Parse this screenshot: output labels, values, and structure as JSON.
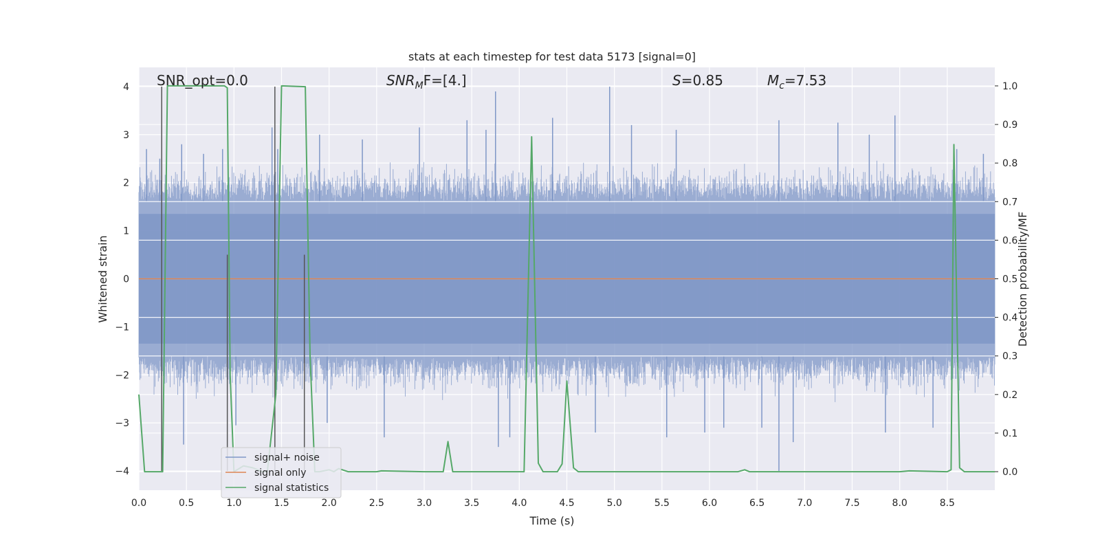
{
  "chart_data": {
    "type": "line",
    "title": "stats at each timestep for test data 5173 [signal=0]",
    "xlabel": "Time (s)",
    "ylabel": "Whitened strain",
    "ylabel_right": "Detection probability/MF",
    "xlim": [
      0.0,
      9.0
    ],
    "ylim": [
      -4.4,
      4.4
    ],
    "ylim_right": [
      -0.048,
      1.048
    ],
    "xticks": [
      "0.0",
      "0.5",
      "1.0",
      "1.5",
      "2.0",
      "2.5",
      "3.0",
      "3.5",
      "4.0",
      "4.5",
      "5.0",
      "5.5",
      "6.0",
      "6.5",
      "7.0",
      "7.5",
      "8.0",
      "8.5"
    ],
    "yticks": [
      "4",
      "3",
      "2",
      "1",
      "0",
      "−1",
      "−2",
      "−3",
      "−4"
    ],
    "yticks_right": [
      "1.0",
      "0.9",
      "0.8",
      "0.7",
      "0.6",
      "0.5",
      "0.4",
      "0.3",
      "0.2",
      "0.1",
      "0.0"
    ],
    "annotations": {
      "snr_opt": "SNR_opt=0.0",
      "snr_mf": "SNR",
      "snr_mf_sub": "M",
      "snr_mf_tail": "F=[4.]",
      "s_sym": "S",
      "s_val": "=0.85",
      "mc_sym": "M",
      "mc_sub": "c",
      "mc_val": "=7.53"
    },
    "legend": {
      "placement": "lower-left",
      "entries": [
        "signal+ noise",
        "signal only",
        "signal statistics"
      ]
    },
    "colors": {
      "noise": "#7f97c7",
      "signal": "#dd8452",
      "stats": "#55a868",
      "markers": "#555555",
      "background": "#eaeaf2",
      "grid": "#ffffff"
    },
    "series": [
      {
        "name": "signal+ noise",
        "note": "dense whitened noise, envelope ~±1.6 with spikes up to ~3.9 and down to ~−4.0",
        "spikes": [
          {
            "t": 0.08,
            "v": 2.7
          },
          {
            "t": 0.22,
            "v": 2.5
          },
          {
            "t": 0.45,
            "v": 2.8
          },
          {
            "t": 0.47,
            "v": -3.45
          },
          {
            "t": 0.68,
            "v": 2.6
          },
          {
            "t": 0.88,
            "v": 2.7
          },
          {
            "t": 1.02,
            "v": -3.05
          },
          {
            "t": 1.4,
            "v": 3.15
          },
          {
            "t": 1.46,
            "v": 2.7
          },
          {
            "t": 1.9,
            "v": 3.0
          },
          {
            "t": 1.98,
            "v": -3.0
          },
          {
            "t": 2.35,
            "v": 2.9
          },
          {
            "t": 2.58,
            "v": -3.3
          },
          {
            "t": 2.95,
            "v": 3.15
          },
          {
            "t": 3.45,
            "v": 3.3
          },
          {
            "t": 3.65,
            "v": 3.1
          },
          {
            "t": 3.75,
            "v": 3.9
          },
          {
            "t": 3.78,
            "v": -3.5
          },
          {
            "t": 3.9,
            "v": -3.3
          },
          {
            "t": 4.35,
            "v": 3.35
          },
          {
            "t": 4.8,
            "v": -3.2
          },
          {
            "t": 4.95,
            "v": 4.0
          },
          {
            "t": 5.18,
            "v": 3.2
          },
          {
            "t": 5.55,
            "v": -3.3
          },
          {
            "t": 5.65,
            "v": 3.1
          },
          {
            "t": 5.95,
            "v": -3.2
          },
          {
            "t": 6.15,
            "v": -3.1
          },
          {
            "t": 6.55,
            "v": -3.1
          },
          {
            "t": 6.73,
            "v": 3.3
          },
          {
            "t": 6.73,
            "v": -4.0
          },
          {
            "t": 6.88,
            "v": -3.4
          },
          {
            "t": 7.35,
            "v": 3.25
          },
          {
            "t": 7.68,
            "v": 3.0
          },
          {
            "t": 7.85,
            "v": -3.2
          },
          {
            "t": 7.95,
            "v": 3.4
          },
          {
            "t": 8.35,
            "v": -3.1
          },
          {
            "t": 8.6,
            "v": 2.7
          },
          {
            "t": 8.88,
            "v": 2.6
          }
        ]
      },
      {
        "name": "signal only",
        "x": [
          0.0,
          9.0
        ],
        "values": [
          0.0,
          0.0
        ]
      },
      {
        "name": "signal statistics",
        "axis": "right",
        "x": [
          0.0,
          0.06,
          0.25,
          0.3,
          0.9,
          0.93,
          0.96,
          1.0,
          1.1,
          1.2,
          1.3,
          1.35,
          1.44,
          1.5,
          1.75,
          1.8,
          1.85,
          1.9,
          2.0,
          2.05,
          2.1,
          2.2,
          2.5,
          2.55,
          3.0,
          3.2,
          3.25,
          3.3,
          3.45,
          4.05,
          4.13,
          4.2,
          4.25,
          4.3,
          4.4,
          4.45,
          4.5,
          4.57,
          4.62,
          4.7,
          6.3,
          6.37,
          6.42,
          6.5,
          8.0,
          8.1,
          8.5,
          8.54,
          8.57,
          8.63,
          8.68,
          8.75,
          9.0
        ],
        "values": [
          0.2,
          0.0,
          0.0,
          1.0,
          1.0,
          0.995,
          0.25,
          0.0,
          0.015,
          0.01,
          0.0,
          0.0,
          0.2,
          1.0,
          0.998,
          0.3,
          0.0,
          0.0,
          0.005,
          0.0,
          0.008,
          0.0,
          0.0,
          0.002,
          0.0,
          0.0,
          0.078,
          0.0,
          0.0,
          0.0,
          0.868,
          0.022,
          0.0,
          0.0,
          0.0,
          0.02,
          0.235,
          0.01,
          0.0,
          0.0,
          0.0,
          0.005,
          0.0,
          0.0,
          0.0,
          0.002,
          0.0,
          0.005,
          0.848,
          0.01,
          0.0,
          0.0,
          0.0
        ]
      },
      {
        "name": "markers",
        "axis": "left",
        "segments": [
          {
            "t": 0.24,
            "y0": 4.0,
            "y1": -4.0
          },
          {
            "t": 0.93,
            "y0": 0.5,
            "y1": -4.0
          },
          {
            "t": 1.43,
            "y0": 4.0,
            "y1": -4.0
          },
          {
            "t": 1.74,
            "y0": 0.5,
            "y1": -4.0
          }
        ]
      }
    ]
  }
}
